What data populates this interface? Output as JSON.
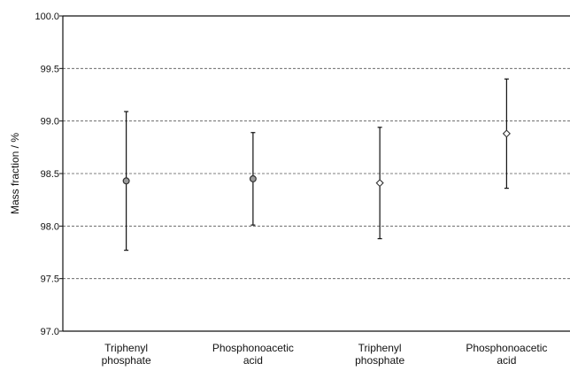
{
  "chart_data": {
    "type": "scatter",
    "ylabel": "Mass fraction  /  %",
    "ylim": [
      97.0,
      100.0
    ],
    "yticks": [
      "97.0",
      "97.5",
      "98.0",
      "98.5",
      "99.0",
      "99.5",
      "100.0"
    ],
    "grid": "horizontal-dashed",
    "categories": [
      [
        "Triphenyl",
        "phosphate"
      ],
      [
        "Phosphonoacetic",
        "acid"
      ],
      [
        "Triphenyl",
        "phosphate"
      ],
      [
        "Phosphonoacetic",
        "acid"
      ]
    ],
    "points": [
      {
        "value": 98.43,
        "lower": 97.77,
        "upper": 99.09,
        "marker": "circle"
      },
      {
        "value": 98.45,
        "lower": 98.01,
        "upper": 98.89,
        "marker": "circle"
      },
      {
        "value": 98.41,
        "lower": 97.88,
        "upper": 98.94,
        "marker": "diamond"
      },
      {
        "value": 98.88,
        "lower": 98.36,
        "upper": 99.4,
        "marker": "diamond"
      }
    ],
    "colors": {
      "marker_stroke": "#333333",
      "circle_fill": "#9a9a9a",
      "diamond_fill": "#ffffff",
      "grid": "#555555"
    }
  }
}
